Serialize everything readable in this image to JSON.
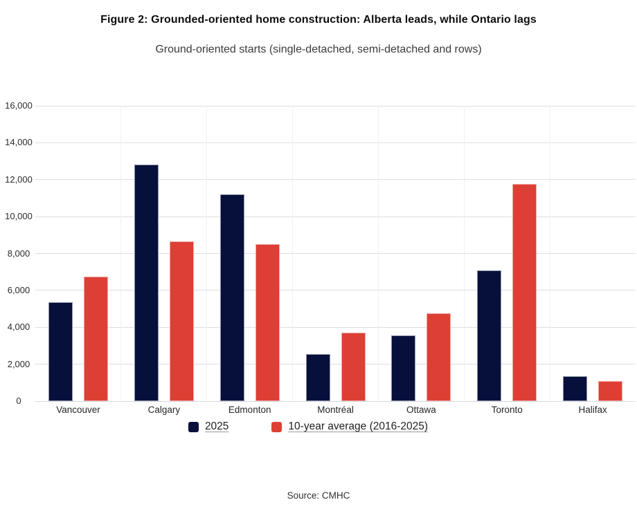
{
  "figure": {
    "source": "Source: CMHC"
  },
  "colors": {
    "series_2025": "#06103A",
    "series_10yr_avg": "#DE3F35",
    "gridline": "#DCDCE5",
    "axis_line": "#D8D8E2",
    "vertical_separator": "#F0F0F5"
  },
  "chart_data": {
    "type": "bar",
    "title": "Figure 2: Grounded-oriented home construction: Alberta leads, while Ontario lags",
    "subtitle": "Ground-oriented starts (single-detached, semi-detached and rows)",
    "categories": [
      "Vancouver",
      "Calgary",
      "Edmonton",
      "Montréal",
      "Ottawa",
      "Toronto",
      "Halifax"
    ],
    "series": [
      {
        "name": "2025",
        "color": "#06103A",
        "values": [
          5350,
          12800,
          11200,
          2550,
          3550,
          7100,
          1350
        ]
      },
      {
        "name": "10-year average (2016-2025)",
        "color": "#DE3F35",
        "values": [
          6750,
          8650,
          8500,
          3700,
          4750,
          11750,
          1100
        ]
      }
    ],
    "xlabel": "",
    "ylabel": "",
    "ylim": [
      0,
      16000
    ],
    "ytick_step": 2000,
    "ytick_labels": [
      "0",
      "2,000",
      "4,000",
      "6,000",
      "8,000",
      "10,000",
      "12,000",
      "14,000",
      "16,000"
    ],
    "grid": "horizontal",
    "legend_position": "bottom"
  }
}
